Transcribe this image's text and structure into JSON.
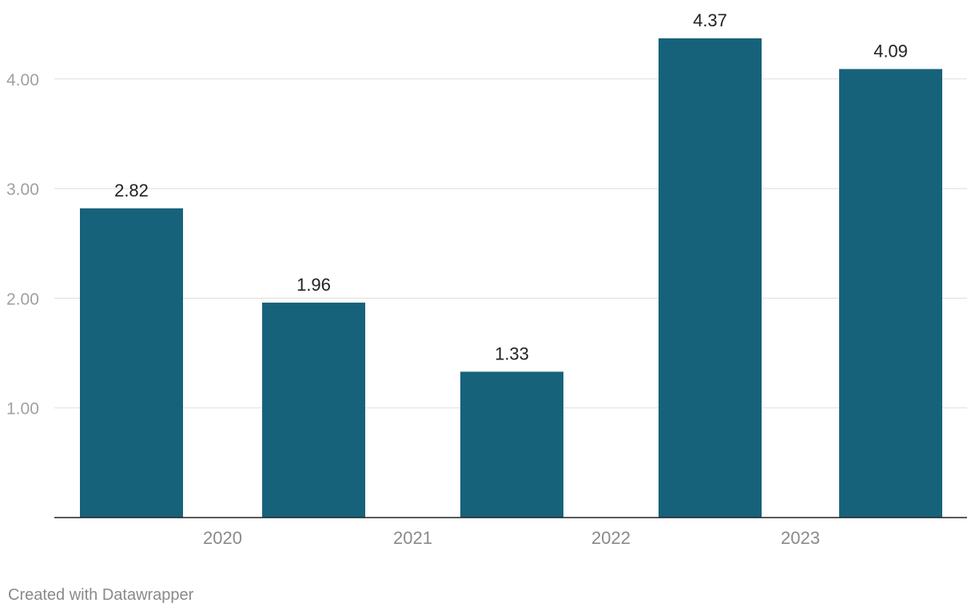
{
  "chart_data": {
    "type": "bar",
    "bars": [
      {
        "value": 2.82,
        "label": "2.82"
      },
      {
        "value": 1.96,
        "label": "1.96"
      },
      {
        "value": 1.33,
        "label": "1.33"
      },
      {
        "value": 4.37,
        "label": "4.37"
      },
      {
        "value": 4.09,
        "label": "4.09"
      }
    ],
    "x_axis_labels": [
      {
        "text": "2020",
        "position": 1.5
      },
      {
        "text": "2021",
        "position": 2.5
      },
      {
        "text": "2022",
        "position": 3.5
      },
      {
        "text": "2023",
        "position": 4.5
      }
    ],
    "y_ticks": [
      {
        "value": 1,
        "label": "1.00"
      },
      {
        "value": 2,
        "label": "2.00"
      },
      {
        "value": 3,
        "label": "3.00"
      },
      {
        "value": 4,
        "label": "4.00"
      }
    ],
    "ylim": [
      0,
      4.37
    ],
    "grid": true,
    "bar_color": "#17627b"
  },
  "footer": {
    "credit": "Created with Datawrapper"
  }
}
